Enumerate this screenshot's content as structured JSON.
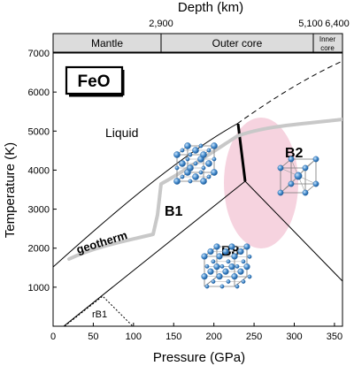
{
  "axes": {
    "top_title": "Depth (km)",
    "depth_ticks": [
      "2,900",
      "5,100",
      "6,400"
    ],
    "zones": [
      "Mantle",
      "Outer core",
      "Inner core"
    ],
    "zone_inner_line1": "Inner",
    "zone_inner_line2": "core",
    "xlabel": "Pressure (GPa)",
    "ylabel": "Temperature (K)",
    "x_ticks": [
      "0",
      "50",
      "100",
      "150",
      "200",
      "250",
      "300",
      "350"
    ],
    "y_ticks": [
      "1000",
      "2000",
      "3000",
      "4000",
      "5000",
      "6000",
      "7000"
    ],
    "xlim": [
      0,
      360
    ],
    "ylim": [
      0,
      7000
    ]
  },
  "labels": {
    "compound": "FeO",
    "liquid": "Liquid",
    "geotherm": "geotherm",
    "b1": "B1",
    "b2": "B2",
    "b8": "B8",
    "rb1": "rB1"
  },
  "colors": {
    "geotherm": "#c8c8c8",
    "highlight": "#f6d3df",
    "atom": "#4a90d0",
    "zone_bar": "#dcdcdc"
  },
  "icons": [
    "b1-crystal-icon",
    "b2-crystal-icon",
    "b8-crystal-icon"
  ]
}
